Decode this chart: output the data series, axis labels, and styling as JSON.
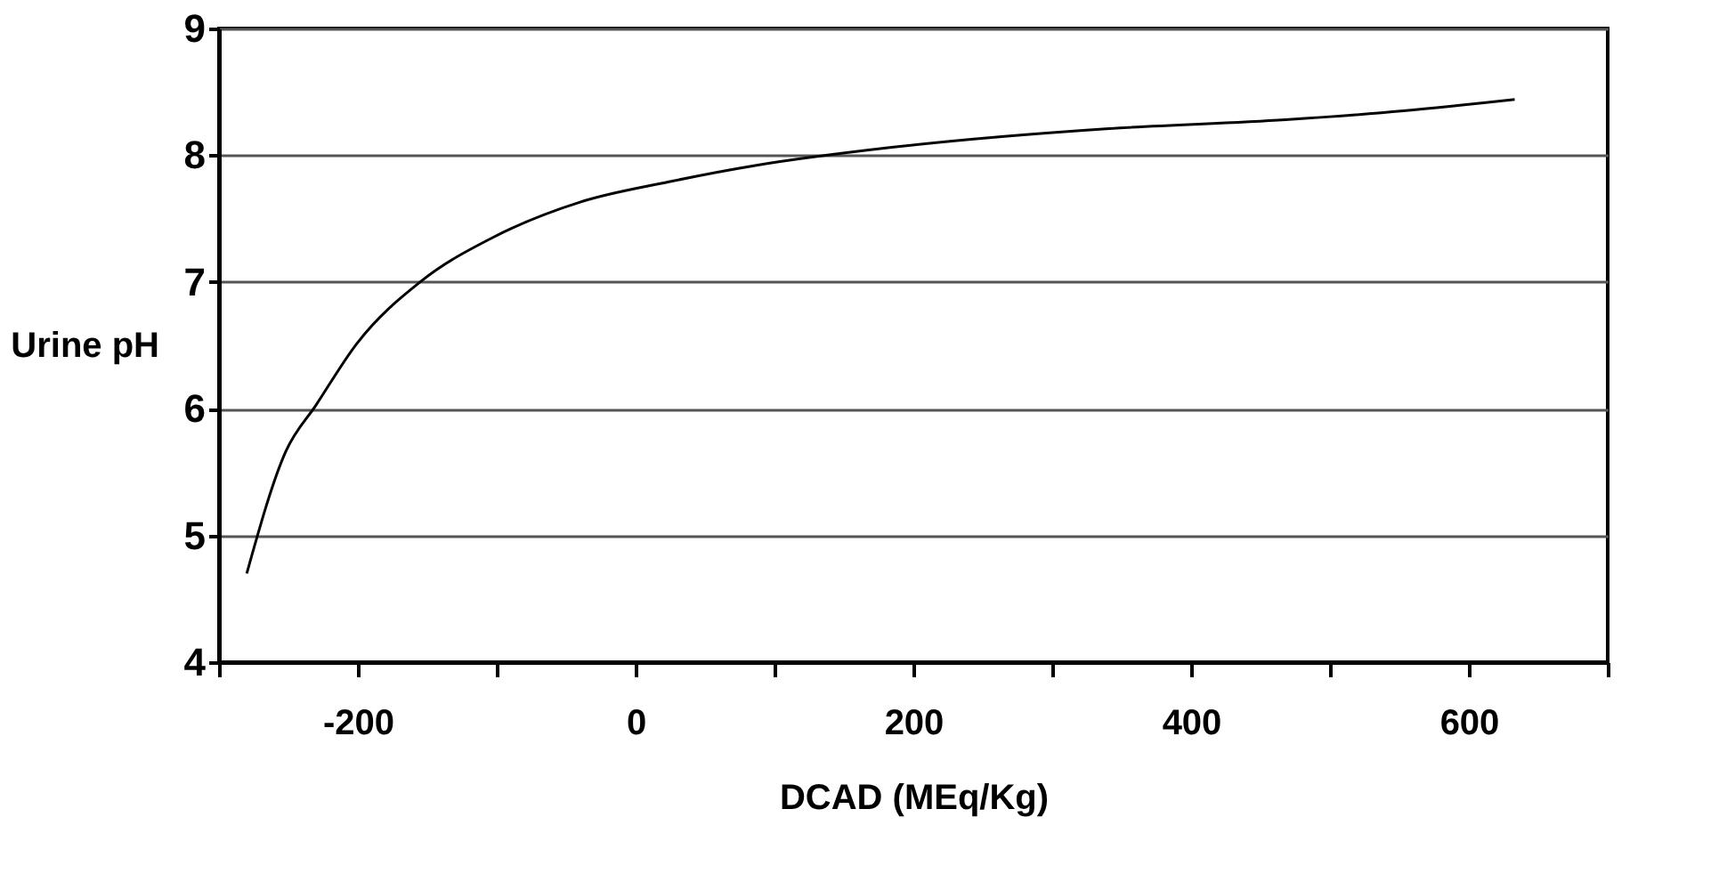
{
  "chart_data": {
    "type": "line",
    "xlabel": "DCAD (MEq/Kg)",
    "ylabel": "Urine pH",
    "x": [
      -280,
      -252,
      -230,
      -201,
      -154,
      -103,
      -40,
      24,
      87,
      183,
      341,
      468,
      553,
      633
    ],
    "series": [
      {
        "color": "#000000",
        "values": [
          4.7,
          5.66,
          6.03,
          6.51,
          7.01,
          7.35,
          7.63,
          7.79,
          7.92,
          8.06,
          8.21,
          8.28,
          8.35,
          8.44
        ]
      }
    ],
    "xlim": [
      -300,
      700
    ],
    "xticks": [
      {
        "value": -300,
        "label": null
      },
      -200,
      {
        "value": -100,
        "label": null
      },
      0,
      {
        "value": 100,
        "label": null
      },
      200,
      {
        "value": 300,
        "label": null
      },
      400,
      {
        "value": 500,
        "label": null
      },
      600,
      {
        "value": 700,
        "label": null
      }
    ],
    "ylim": [
      4,
      9
    ],
    "yticks": [
      4,
      5,
      6,
      7,
      8,
      9
    ],
    "grid": "y",
    "legend": false,
    "marker": "none",
    "line_style": "solid"
  }
}
